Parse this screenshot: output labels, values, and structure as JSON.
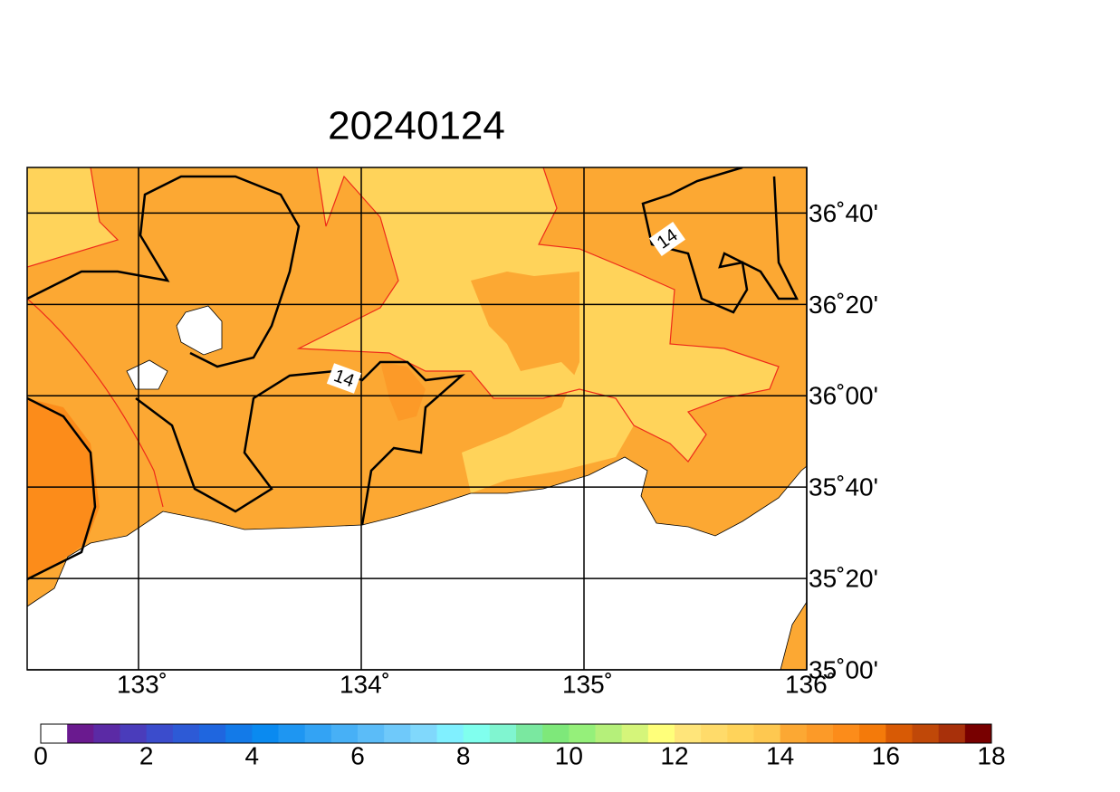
{
  "chart_data": {
    "type": "map",
    "title": "20240124",
    "xlim": [
      132.5,
      136
    ],
    "ylim": [
      35,
      36.8333
    ],
    "xticks": [
      {
        "value": 133,
        "label": "133˚"
      },
      {
        "value": 134,
        "label": "134˚"
      },
      {
        "value": 135,
        "label": "135˚"
      },
      {
        "value": 136,
        "label": "136˚"
      }
    ],
    "yticks": [
      {
        "value": 35,
        "label": "35˚00'"
      },
      {
        "value": 35.3333,
        "label": "35˚20'"
      },
      {
        "value": 35.6667,
        "label": "35˚40'"
      },
      {
        "value": 36,
        "label": "36˚00'"
      },
      {
        "value": 36.3333,
        "label": "36˚20'"
      },
      {
        "value": 36.6667,
        "label": "36˚40'"
      }
    ],
    "grid": true,
    "contour_labels": [
      "14",
      "14"
    ],
    "colorbar": {
      "lim": [
        0,
        18
      ],
      "ticks": [
        0,
        2,
        4,
        6,
        8,
        10,
        12,
        14,
        16,
        18
      ],
      "colors": [
        "#ffffff",
        "#6a1a8f",
        "#5b2aa5",
        "#4a3cbb",
        "#3b4ccc",
        "#2d5ad6",
        "#1f66df",
        "#137ae8",
        "#0a8af0",
        "#1e96f2",
        "#33a3f4",
        "#47b0f6",
        "#5bbcf8",
        "#6fc9fa",
        "#80d8fc",
        "#80f0ff",
        "#80ffee",
        "#80f5d0",
        "#7ae8a0",
        "#7ee87a",
        "#95f07a",
        "#b5f07a",
        "#d5f57a",
        "#ffff7a",
        "#ffe57a",
        "#ffdb6a",
        "#ffd35a",
        "#fec850",
        "#fca833",
        "#fc9a28",
        "#fc8c1a",
        "#f47a0a",
        "#d85a05",
        "#c04808",
        "#a8300a",
        "#780000"
      ]
    }
  }
}
